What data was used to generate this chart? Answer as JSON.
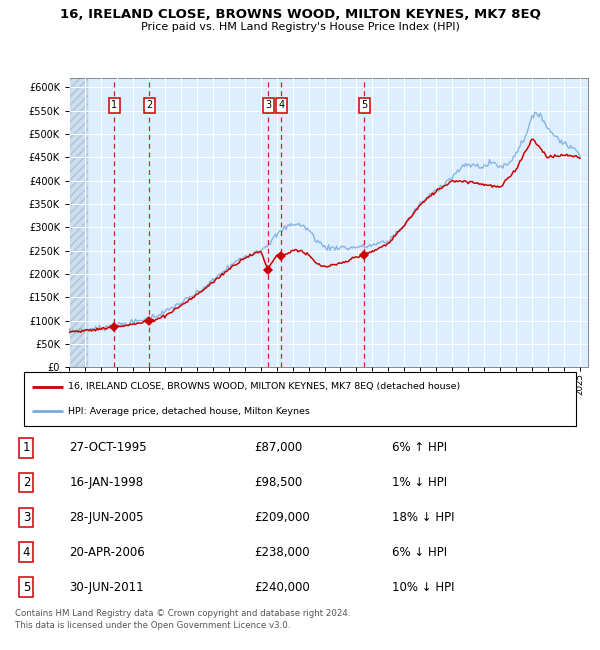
{
  "title": "16, IRELAND CLOSE, BROWNS WOOD, MILTON KEYNES, MK7 8EQ",
  "subtitle": "Price paid vs. HM Land Registry's House Price Index (HPI)",
  "xlim_start": 1993.0,
  "xlim_end": 2025.5,
  "ylim_min": 0,
  "ylim_max": 620000,
  "yticks": [
    0,
    50000,
    100000,
    150000,
    200000,
    250000,
    300000,
    350000,
    400000,
    450000,
    500000,
    550000,
    600000
  ],
  "ytick_labels": [
    "£0",
    "£50K",
    "£100K",
    "£150K",
    "£200K",
    "£250K",
    "£300K",
    "£350K",
    "£400K",
    "£450K",
    "£500K",
    "£550K",
    "£600K"
  ],
  "xtick_years": [
    1993,
    1994,
    1995,
    1996,
    1997,
    1998,
    1999,
    2000,
    2001,
    2002,
    2003,
    2004,
    2005,
    2006,
    2007,
    2008,
    2009,
    2010,
    2011,
    2012,
    2013,
    2014,
    2015,
    2016,
    2017,
    2018,
    2019,
    2020,
    2021,
    2022,
    2023,
    2024,
    2025
  ],
  "sale_color": "#cc0000",
  "hpi_color": "#7aaadd",
  "bg_color": "#ddeeff",
  "grid_color": "#ffffff",
  "legend_line1": "16, IRELAND CLOSE, BROWNS WOOD, MILTON KEYNES, MK7 8EQ (detached house)",
  "legend_line2": "HPI: Average price, detached house, Milton Keynes",
  "sales": [
    {
      "num": 1,
      "date": "27-OCT-1995",
      "price": 87000,
      "year": 1995.82,
      "pct": "6%",
      "dir": "↑"
    },
    {
      "num": 2,
      "date": "16-JAN-1998",
      "price": 98500,
      "year": 1998.04,
      "pct": "1%",
      "dir": "↓"
    },
    {
      "num": 3,
      "date": "28-JUN-2005",
      "price": 209000,
      "year": 2005.49,
      "pct": "18%",
      "dir": "↓"
    },
    {
      "num": 4,
      "date": "20-APR-2006",
      "price": 238000,
      "year": 2006.3,
      "pct": "6%",
      "dir": "↓"
    },
    {
      "num": 5,
      "date": "30-JUN-2011",
      "price": 240000,
      "year": 2011.49,
      "pct": "10%",
      "dir": "↓"
    }
  ],
  "footer_line1": "Contains HM Land Registry data © Crown copyright and database right 2024.",
  "footer_line2": "This data is licensed under the Open Government Licence v3.0.",
  "hpi_key_years": [
    1993,
    1994,
    1995,
    1996,
    1997,
    1998,
    1999,
    2000,
    2001,
    2002,
    2003,
    2004,
    2005,
    2005.5,
    2006,
    2006.5,
    2007,
    2007.5,
    2008,
    2008.5,
    2009,
    2009.5,
    2010,
    2010.5,
    2011,
    2011.5,
    2012,
    2013,
    2014,
    2015,
    2016,
    2017,
    2017.5,
    2018,
    2018.5,
    2019,
    2019.5,
    2020,
    2020.5,
    2021,
    2021.5,
    2022,
    2022.5,
    2023,
    2023.5,
    2024,
    2024.5,
    2025
  ],
  "hpi_key_vals": [
    78000,
    80000,
    84000,
    90000,
    96000,
    105000,
    118000,
    138000,
    158000,
    185000,
    215000,
    238000,
    252000,
    265000,
    283000,
    298000,
    308000,
    305000,
    295000,
    272000,
    258000,
    255000,
    258000,
    255000,
    258000,
    258000,
    262000,
    270000,
    305000,
    350000,
    380000,
    408000,
    425000,
    435000,
    432000,
    430000,
    440000,
    430000,
    435000,
    460000,
    490000,
    535000,
    545000,
    510000,
    495000,
    480000,
    470000,
    460000
  ],
  "sale_key_years": [
    1993,
    1994,
    1995,
    1995.82,
    1996,
    1997,
    1997.5,
    1998.04,
    1999,
    2000,
    2001,
    2002,
    2003,
    2004,
    2005,
    2005.49,
    2005.7,
    2006,
    2006.3,
    2006.8,
    2007,
    2007.5,
    2008,
    2008.5,
    2009,
    2009.5,
    2010,
    2010.5,
    2011,
    2011.49,
    2012,
    2013,
    2014,
    2015,
    2016,
    2017,
    2018,
    2019,
    2020,
    2021,
    2022,
    2023,
    2024,
    2025
  ],
  "sale_key_vals": [
    76000,
    78000,
    82000,
    87000,
    88000,
    92000,
    95000,
    98500,
    110000,
    132000,
    155000,
    182000,
    210000,
    235000,
    248000,
    209000,
    225000,
    240000,
    238000,
    245000,
    252000,
    250000,
    240000,
    222000,
    215000,
    218000,
    222000,
    228000,
    238000,
    240000,
    248000,
    265000,
    305000,
    348000,
    378000,
    400000,
    398000,
    392000,
    385000,
    425000,
    490000,
    450000,
    455000,
    450000
  ]
}
